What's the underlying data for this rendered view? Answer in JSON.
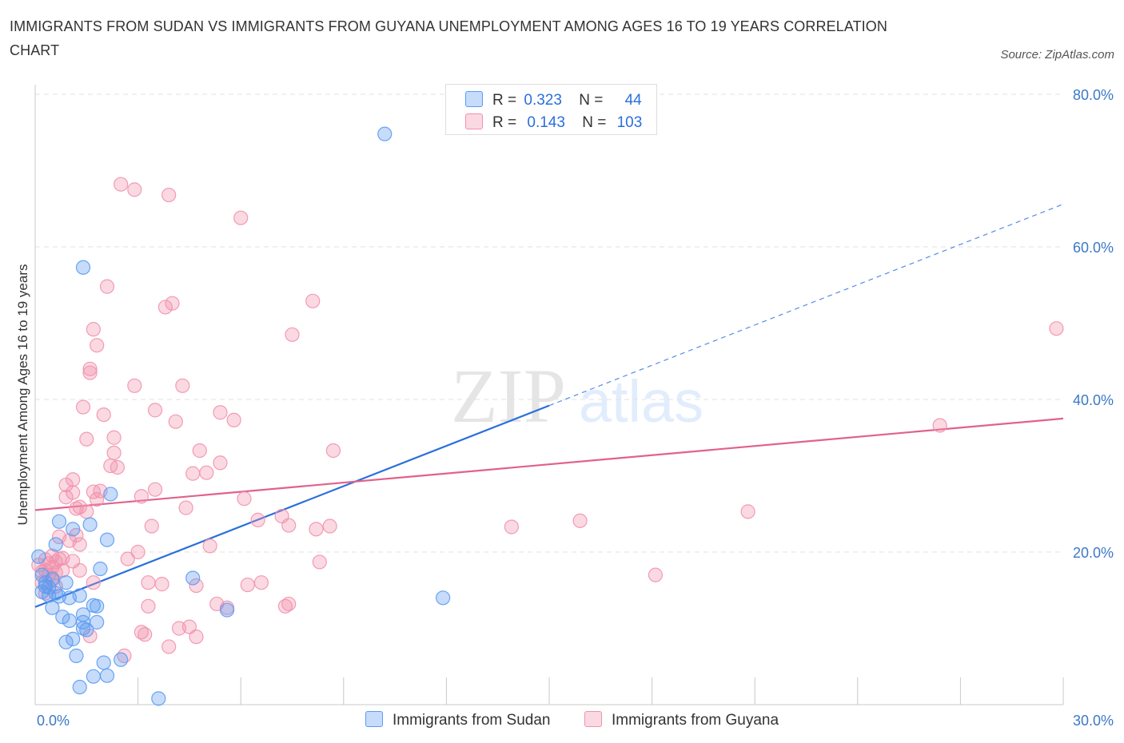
{
  "title": "IMMIGRANTS FROM SUDAN VS IMMIGRANTS FROM GUYANA UNEMPLOYMENT AMONG AGES 16 TO 19 YEARS CORRELATION CHART",
  "source": "Source: ZipAtlas.com",
  "watermark": {
    "zip": "ZIP",
    "atlas": "atlas"
  },
  "legend": {
    "series1": {
      "r_label": "R =",
      "r": "0.323",
      "n_label": "N =",
      "n": "44"
    },
    "series2": {
      "r_label": "R =",
      "r": "0.143",
      "n_label": "N =",
      "n": "103"
    }
  },
  "chart_data": {
    "type": "scatter",
    "ylabel": "Unemployment Among Ages 16 to 19 years",
    "xlim": [
      0,
      30
    ],
    "ylim": [
      0,
      80
    ],
    "x_tick_labels": [
      "0.0%",
      "30.0%"
    ],
    "y_ticks": [
      20,
      40,
      60,
      80
    ],
    "y_tick_labels": [
      "20.0%",
      "40.0%",
      "60.0%",
      "80.0%"
    ],
    "grid": true,
    "colors": {
      "sudan": "#5b9bf2",
      "guyana": "#f291ad",
      "sudan_line": "#2a6fdb",
      "guyana_line": "#e0628c",
      "axis_text": "#3b78c8"
    },
    "series": [
      {
        "name": "Immigrants from Sudan",
        "trend": {
          "x0": 0,
          "y0": 12.8,
          "x1": 15,
          "y1": 39.2,
          "dash_to_x": 30,
          "dash_to_y": 65.6
        },
        "points": [
          [
            0.1,
            19.4
          ],
          [
            0.2,
            17.0
          ],
          [
            0.3,
            15.5
          ],
          [
            0.4,
            14.3
          ],
          [
            0.4,
            15.4
          ],
          [
            0.5,
            12.7
          ],
          [
            0.5,
            16.5
          ],
          [
            0.6,
            14.6
          ],
          [
            0.7,
            14.2
          ],
          [
            0.6,
            21.0
          ],
          [
            0.7,
            24.0
          ],
          [
            0.8,
            11.5
          ],
          [
            0.9,
            8.2
          ],
          [
            0.9,
            16.0
          ],
          [
            1.0,
            11.0
          ],
          [
            1.0,
            14.0
          ],
          [
            1.1,
            8.6
          ],
          [
            1.1,
            23.0
          ],
          [
            1.2,
            6.4
          ],
          [
            1.3,
            2.3
          ],
          [
            1.3,
            14.3
          ],
          [
            1.4,
            10.0
          ],
          [
            1.4,
            11.8
          ],
          [
            1.4,
            10.8
          ],
          [
            1.5,
            9.8
          ],
          [
            1.6,
            23.6
          ],
          [
            1.7,
            13.0
          ],
          [
            1.7,
            3.7
          ],
          [
            1.8,
            12.9
          ],
          [
            1.8,
            10.8
          ],
          [
            1.9,
            17.8
          ],
          [
            2.0,
            5.5
          ],
          [
            2.1,
            3.8
          ],
          [
            2.1,
            21.6
          ],
          [
            2.2,
            27.6
          ],
          [
            2.5,
            5.9
          ],
          [
            1.4,
            57.3
          ],
          [
            3.6,
            0.8
          ],
          [
            4.6,
            16.6
          ],
          [
            5.6,
            12.4
          ],
          [
            11.9,
            14.0
          ],
          [
            10.2,
            74.8
          ],
          [
            0.2,
            14.8
          ],
          [
            0.3,
            16.0
          ]
        ]
      },
      {
        "name": "Immigrants from Guyana",
        "trend": {
          "x0": 0,
          "y0": 25.5,
          "x1": 30,
          "y1": 37.5
        },
        "points": [
          [
            0.1,
            18.3
          ],
          [
            0.2,
            17.4
          ],
          [
            0.2,
            16.0
          ],
          [
            0.3,
            19.0
          ],
          [
            0.3,
            17.6
          ],
          [
            0.4,
            18.5
          ],
          [
            0.4,
            17.0
          ],
          [
            0.5,
            19.5
          ],
          [
            0.5,
            18.0
          ],
          [
            0.5,
            16.3
          ],
          [
            0.6,
            18.7
          ],
          [
            0.6,
            17.3
          ],
          [
            0.7,
            19.1
          ],
          [
            0.7,
            22.0
          ],
          [
            0.8,
            17.6
          ],
          [
            0.8,
            19.2
          ],
          [
            0.9,
            27.2
          ],
          [
            0.9,
            28.8
          ],
          [
            1.0,
            21.5
          ],
          [
            1.1,
            29.5
          ],
          [
            1.1,
            27.8
          ],
          [
            1.1,
            18.8
          ],
          [
            1.2,
            25.7
          ],
          [
            1.2,
            22.2
          ],
          [
            1.3,
            21.0
          ],
          [
            1.3,
            25.9
          ],
          [
            1.3,
            17.6
          ],
          [
            1.4,
            39.0
          ],
          [
            1.5,
            25.3
          ],
          [
            1.5,
            34.8
          ],
          [
            1.6,
            43.5
          ],
          [
            1.6,
            44.0
          ],
          [
            1.7,
            49.2
          ],
          [
            1.7,
            27.9
          ],
          [
            1.7,
            16.0
          ],
          [
            1.8,
            26.9
          ],
          [
            1.8,
            47.1
          ],
          [
            1.9,
            28.0
          ],
          [
            2.0,
            38.0
          ],
          [
            2.1,
            54.8
          ],
          [
            2.2,
            31.3
          ],
          [
            2.3,
            35.0
          ],
          [
            2.3,
            33.0
          ],
          [
            2.4,
            31.1
          ],
          [
            2.5,
            68.2
          ],
          [
            2.6,
            6.4
          ],
          [
            2.7,
            19.1
          ],
          [
            2.9,
            67.5
          ],
          [
            2.9,
            41.8
          ],
          [
            3.0,
            20.0
          ],
          [
            3.1,
            27.3
          ],
          [
            3.1,
            9.5
          ],
          [
            3.2,
            9.2
          ],
          [
            3.3,
            12.9
          ],
          [
            3.3,
            16.0
          ],
          [
            3.4,
            23.4
          ],
          [
            3.5,
            28.2
          ],
          [
            3.5,
            38.6
          ],
          [
            3.7,
            15.8
          ],
          [
            3.8,
            52.1
          ],
          [
            3.9,
            7.6
          ],
          [
            3.9,
            66.8
          ],
          [
            4.0,
            52.6
          ],
          [
            4.1,
            37.1
          ],
          [
            4.2,
            10.0
          ],
          [
            4.3,
            41.8
          ],
          [
            4.4,
            25.8
          ],
          [
            4.5,
            10.2
          ],
          [
            4.6,
            30.3
          ],
          [
            4.7,
            8.9
          ],
          [
            4.7,
            15.6
          ],
          [
            4.8,
            33.3
          ],
          [
            5.0,
            30.4
          ],
          [
            5.1,
            20.8
          ],
          [
            5.3,
            13.2
          ],
          [
            5.4,
            31.7
          ],
          [
            5.4,
            38.3
          ],
          [
            5.6,
            12.7
          ],
          [
            5.8,
            37.3
          ],
          [
            6.0,
            63.8
          ],
          [
            6.1,
            27.0
          ],
          [
            6.2,
            15.7
          ],
          [
            6.5,
            24.2
          ],
          [
            6.6,
            16.0
          ],
          [
            7.2,
            24.7
          ],
          [
            7.3,
            12.9
          ],
          [
            7.4,
            23.5
          ],
          [
            7.4,
            13.2
          ],
          [
            7.5,
            48.5
          ],
          [
            8.1,
            52.9
          ],
          [
            8.2,
            23.0
          ],
          [
            8.3,
            18.7
          ],
          [
            8.6,
            23.4
          ],
          [
            8.7,
            33.3
          ],
          [
            13.9,
            23.3
          ],
          [
            15.9,
            24.1
          ],
          [
            18.1,
            17.0
          ],
          [
            20.8,
            25.3
          ],
          [
            26.4,
            36.6
          ],
          [
            29.8,
            49.3
          ],
          [
            0.3,
            14.6
          ],
          [
            0.6,
            15.5
          ],
          [
            1.6,
            9.0
          ]
        ]
      }
    ]
  }
}
